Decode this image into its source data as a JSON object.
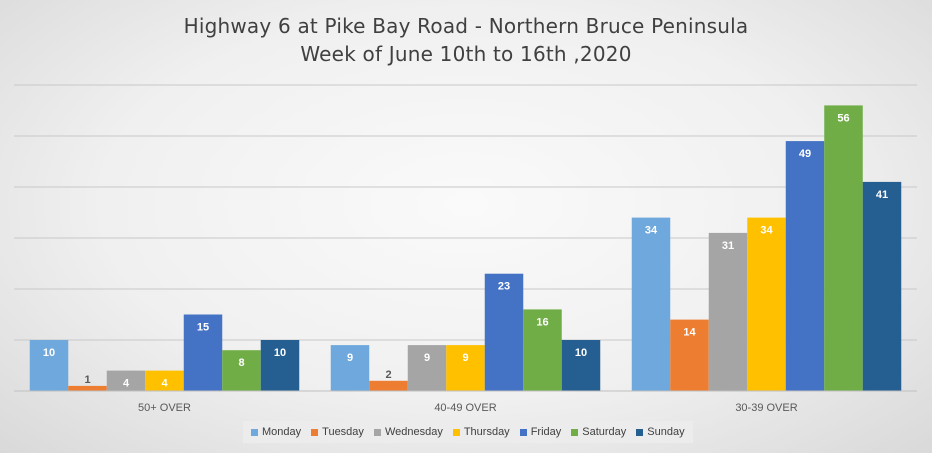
{
  "chart_data": {
    "type": "bar",
    "title": "Highway 6 at Pike Bay Road - Northern Bruce Peninsula",
    "subtitle": "Week of June 10th to 16th ,2020",
    "categories": [
      "50+ OVER",
      "40-49 OVER",
      "30-39 OVER"
    ],
    "series": [
      {
        "name": "Monday",
        "color": "#6fa8dc",
        "values": [
          10,
          9,
          34
        ]
      },
      {
        "name": "Tuesday",
        "color": "#ed7d31",
        "values": [
          1,
          2,
          14
        ]
      },
      {
        "name": "Wednesday",
        "color": "#a5a5a5",
        "values": [
          4,
          9,
          31
        ]
      },
      {
        "name": "Thursday",
        "color": "#ffc000",
        "values": [
          4,
          9,
          34
        ]
      },
      {
        "name": "Friday",
        "color": "#4472c4",
        "values": [
          15,
          23,
          49
        ]
      },
      {
        "name": "Saturday",
        "color": "#70ad47",
        "values": [
          8,
          16,
          56
        ]
      },
      {
        "name": "Sunday",
        "color": "#255e91",
        "values": [
          10,
          10,
          41
        ]
      }
    ],
    "ylim": [
      0,
      60
    ],
    "grid_step": 10,
    "grid": true,
    "legend": "bottom",
    "data_labels": true
  }
}
